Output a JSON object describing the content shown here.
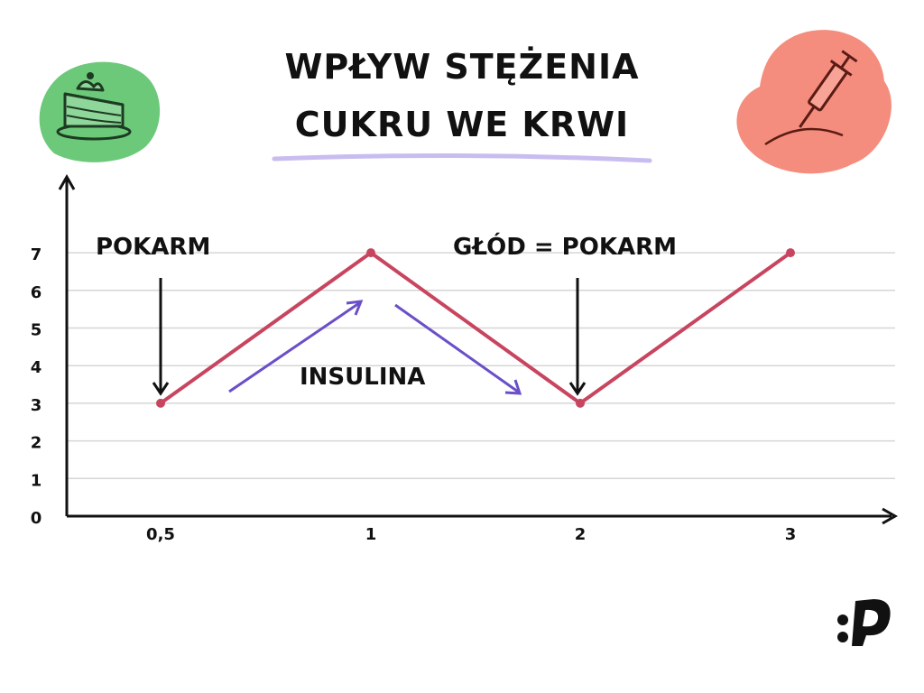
{
  "title": [
    "WPŁYW STĘŻENIA",
    "CUKRU WE KRWI"
  ],
  "colors": {
    "series": "#c8455f",
    "insulin_arrow": "#6a4fc8",
    "underline": "#c9bdf0",
    "axis": "#111111",
    "grid": "#d6d6d6",
    "cake_blob": "#6cc97a",
    "syringe_blob": "#f58d7e"
  },
  "icons": {
    "left": "cake-slice-icon",
    "right": "syringe-injection-icon",
    "logo": "colon-p-logo-icon"
  },
  "chart_data": {
    "type": "line",
    "title": "WPŁYW STĘŻENIA CUKRU WE KRWI",
    "xlabel": "",
    "ylabel": "",
    "categories": [
      "0,5",
      "1",
      "2",
      "3"
    ],
    "yticks": [
      "0",
      "1",
      "2",
      "3",
      "4",
      "5",
      "6",
      "7"
    ],
    "ylim": [
      0,
      7
    ],
    "grid": true,
    "series": [
      {
        "values": [
          3,
          7,
          3,
          7
        ]
      }
    ],
    "annotations": [
      "POKARM",
      "GŁÓD = POKARM",
      "INSULINA"
    ]
  }
}
